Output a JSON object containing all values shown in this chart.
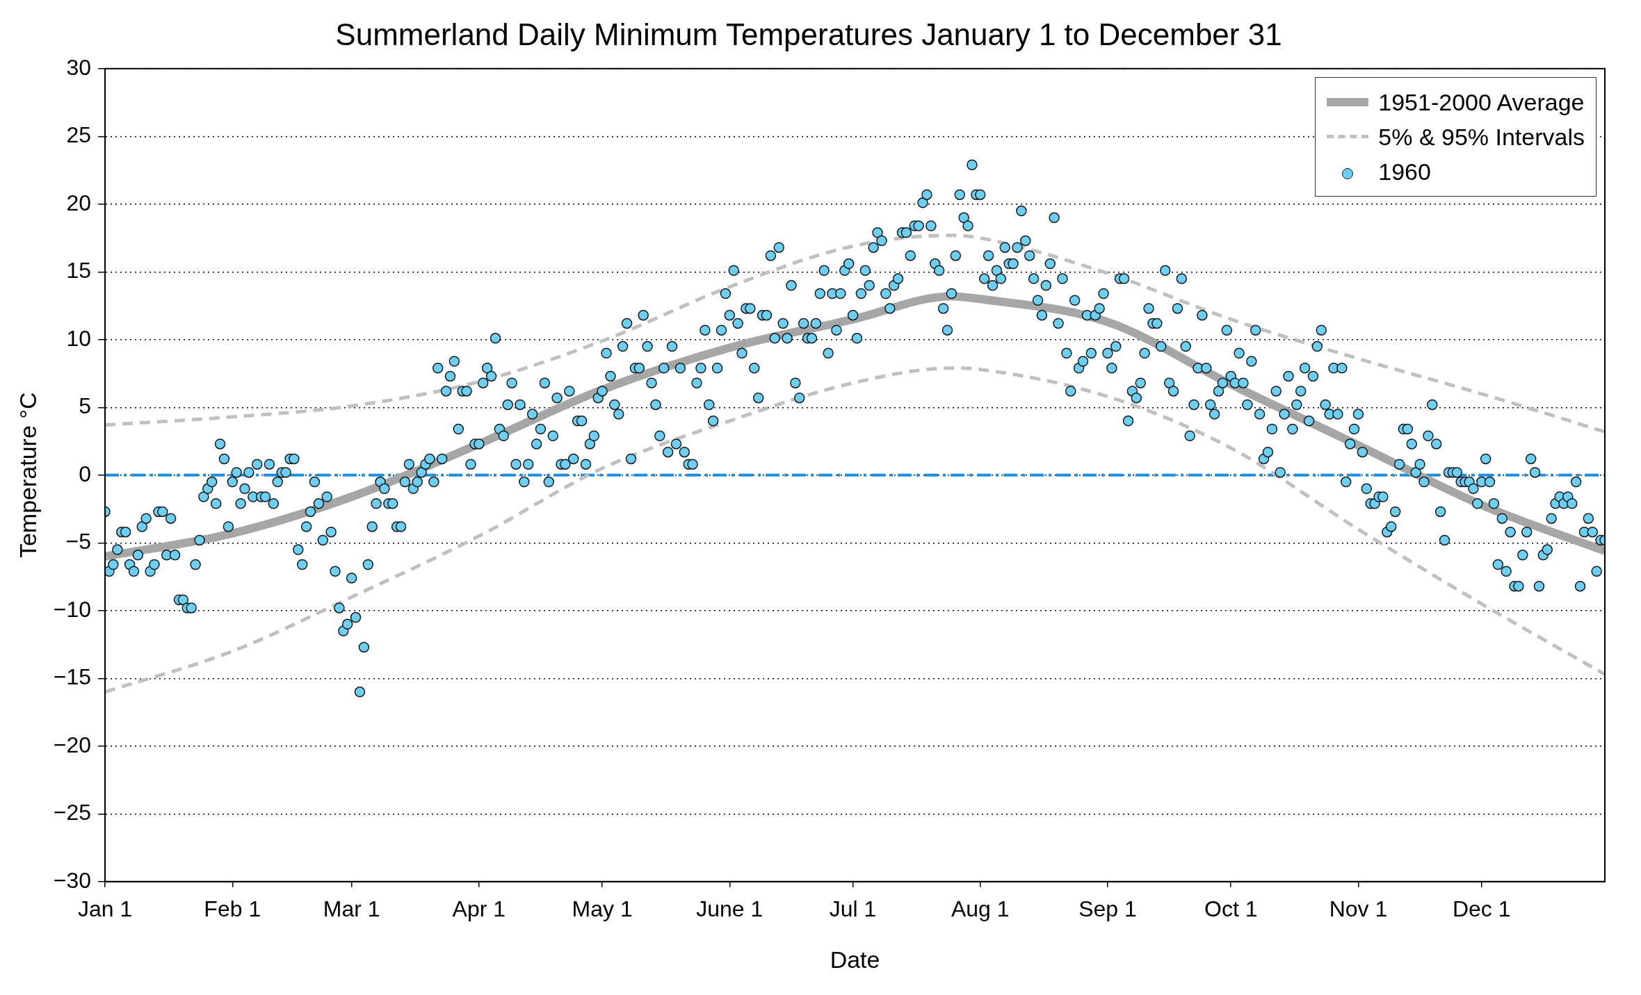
{
  "chart_data": {
    "type": "scatter",
    "title": "Summerland Daily Minimum Temperatures January 1 to December 31",
    "xlabel": "Date",
    "ylabel": "Temperature °C",
    "xlim": [
      "--01-01",
      "--12-31"
    ],
    "xticks": [
      {
        "value": "--01-01",
        "label": "Jan 1"
      },
      {
        "value": "--02-01",
        "label": "Feb 1"
      },
      {
        "value": "--03-01",
        "label": "Mar 1"
      },
      {
        "value": "--04-01",
        "label": "Apr 1"
      },
      {
        "value": "--05-01",
        "label": "May 1"
      },
      {
        "value": "--06-01",
        "label": "June 1"
      },
      {
        "value": "--07-01",
        "label": "Jul 1"
      },
      {
        "value": "--08-01",
        "label": "Aug 1"
      },
      {
        "value": "--09-01",
        "label": "Sep 1"
      },
      {
        "value": "--10-01",
        "label": "Oct 1"
      },
      {
        "value": "--11-01",
        "label": "Nov 1"
      },
      {
        "value": "--12-01",
        "label": "Dec 1"
      }
    ],
    "ylim": [
      -30,
      30
    ],
    "yticks": [
      {
        "value": -30,
        "label": "−30"
      },
      {
        "value": -25,
        "label": "−25"
      },
      {
        "value": -20,
        "label": "−20"
      },
      {
        "value": -15,
        "label": "−15"
      },
      {
        "value": -10,
        "label": "−10"
      },
      {
        "value": -5,
        "label": "−5"
      },
      0,
      5,
      10,
      15,
      20,
      25,
      30
    ],
    "grid": "y",
    "legend": "top right",
    "marker": "none",
    "ref_lines": [
      {
        "axis": "y",
        "value": 0,
        "color": "#1a8fe3",
        "line_style": "dashed"
      }
    ],
    "series": [
      {
        "name": "1951-2000 Average",
        "type": "line",
        "color": "#a6a6a6",
        "line_style": "solid",
        "x": [
          "--01-01",
          "--02-01",
          "--03-01",
          "--04-01",
          "--05-01",
          "--06-01",
          "--07-01",
          "--07-25",
          "--08-01",
          "--09-01",
          "--10-01",
          "--11-01",
          "--12-01",
          "--12-31"
        ],
        "values": [
          -6.0,
          -4.3,
          -1.6,
          2.3,
          6.3,
          9.4,
          11.5,
          13.2,
          13.0,
          11.3,
          6.7,
          2.2,
          -2.2,
          -5.6
        ]
      },
      {
        "name": "5% & 95% Intervals",
        "type": "line",
        "color": "#c0c0c0",
        "line_style": "dashed",
        "x": [
          "--01-01",
          "--02-01",
          "--03-01",
          "--04-01",
          "--05-01",
          "--06-01",
          "--07-01",
          "--07-25",
          "--08-01",
          "--09-01",
          "--10-01",
          "--11-01",
          "--12-01",
          "--12-31"
        ],
        "values": [
          3.7,
          4.3,
          5.1,
          6.9,
          9.9,
          13.9,
          16.9,
          17.7,
          17.5,
          14.9,
          11.5,
          8.6,
          6.0,
          3.2
        ]
      },
      {
        "type": "line",
        "color": "#c0c0c0",
        "line_style": "dashed",
        "x": [
          "--01-01",
          "--02-01",
          "--03-01",
          "--04-01",
          "--05-01",
          "--06-01",
          "--07-01",
          "--07-25",
          "--08-01",
          "--09-01",
          "--10-01",
          "--11-01",
          "--12-01",
          "--12-31"
        ],
        "values": [
          -16.0,
          -13.0,
          -9.0,
          -4.5,
          0.5,
          4.0,
          6.8,
          7.9,
          7.8,
          5.8,
          2.0,
          -4.0,
          -9.5,
          -14.7
        ]
      },
      {
        "name": "1960",
        "type": "scatter",
        "color": "#6ccff6",
        "marker": "circle",
        "x": [
          "--01-01",
          "--01-02",
          "--01-03",
          "--01-04",
          "--01-05",
          "--01-06",
          "--01-07",
          "--01-08",
          "--01-09",
          "--01-10",
          "--01-11",
          "--01-12",
          "--01-13",
          "--01-14",
          "--01-15",
          "--01-16",
          "--01-17",
          "--01-18",
          "--01-19",
          "--01-20",
          "--01-21",
          "--01-22",
          "--01-23",
          "--01-24",
          "--01-25",
          "--01-26",
          "--01-27",
          "--01-28",
          "--01-29",
          "--01-30",
          "--01-31",
          "--02-01",
          "--02-02",
          "--02-03",
          "--02-04",
          "--02-05",
          "--02-06",
          "--02-07",
          "--02-08",
          "--02-09",
          "--02-10",
          "--02-11",
          "--02-12",
          "--02-13",
          "--02-14",
          "--02-15",
          "--02-16",
          "--02-17",
          "--02-18",
          "--02-19",
          "--02-20",
          "--02-21",
          "--02-22",
          "--02-23",
          "--02-24",
          "--02-25",
          "--02-26",
          "--02-27",
          "--02-28",
          "--02-29",
          "--03-01",
          "--03-02",
          "--03-03",
          "--03-04",
          "--03-05",
          "--03-06",
          "--03-07",
          "--03-08",
          "--03-09",
          "--03-10",
          "--03-11",
          "--03-12",
          "--03-13",
          "--03-14",
          "--03-15",
          "--03-16",
          "--03-17",
          "--03-18",
          "--03-19",
          "--03-20",
          "--03-21",
          "--03-22",
          "--03-23",
          "--03-24",
          "--03-25",
          "--03-26",
          "--03-27",
          "--03-28",
          "--03-29",
          "--03-30",
          "--03-31",
          "--04-01",
          "--04-02",
          "--04-03",
          "--04-04",
          "--04-05",
          "--04-06",
          "--04-07",
          "--04-08",
          "--04-09",
          "--04-10",
          "--04-11",
          "--04-12",
          "--04-13",
          "--04-14",
          "--04-15",
          "--04-16",
          "--04-17",
          "--04-18",
          "--04-19",
          "--04-20",
          "--04-21",
          "--04-22",
          "--04-23",
          "--04-24",
          "--04-25",
          "--04-26",
          "--04-27",
          "--04-28",
          "--04-29",
          "--04-30",
          "--05-01",
          "--05-02",
          "--05-03",
          "--05-04",
          "--05-05",
          "--05-06",
          "--05-07",
          "--05-08",
          "--05-09",
          "--05-10",
          "--05-11",
          "--05-12",
          "--05-13",
          "--05-14",
          "--05-15",
          "--05-16",
          "--05-17",
          "--05-18",
          "--05-19",
          "--05-20",
          "--05-21",
          "--05-22",
          "--05-23",
          "--05-24",
          "--05-25",
          "--05-26",
          "--05-27",
          "--05-28",
          "--05-29",
          "--05-30",
          "--05-31",
          "--06-01",
          "--06-02",
          "--06-03",
          "--06-04",
          "--06-05",
          "--06-06",
          "--06-07",
          "--06-08",
          "--06-09",
          "--06-10",
          "--06-11",
          "--06-12",
          "--06-13",
          "--06-14",
          "--06-15",
          "--06-16",
          "--06-17",
          "--06-18",
          "--06-19",
          "--06-20",
          "--06-21",
          "--06-22",
          "--06-23",
          "--06-24",
          "--06-25",
          "--06-26",
          "--06-27",
          "--06-28",
          "--06-29",
          "--06-30",
          "--07-01",
          "--07-02",
          "--07-03",
          "--07-04",
          "--07-05",
          "--07-06",
          "--07-07",
          "--07-08",
          "--07-09",
          "--07-10",
          "--07-11",
          "--07-12",
          "--07-13",
          "--07-14",
          "--07-15",
          "--07-16",
          "--07-17",
          "--07-18",
          "--07-19",
          "--07-20",
          "--07-21",
          "--07-22",
          "--07-23",
          "--07-24",
          "--07-25",
          "--07-26",
          "--07-27",
          "--07-28",
          "--07-29",
          "--07-30",
          "--07-31",
          "--08-01",
          "--08-02",
          "--08-03",
          "--08-04",
          "--08-05",
          "--08-06",
          "--08-07",
          "--08-08",
          "--08-09",
          "--08-10",
          "--08-11",
          "--08-12",
          "--08-13",
          "--08-14",
          "--08-15",
          "--08-16",
          "--08-17",
          "--08-18",
          "--08-19",
          "--08-20",
          "--08-21",
          "--08-22",
          "--08-23",
          "--08-24",
          "--08-25",
          "--08-26",
          "--08-27",
          "--08-28",
          "--08-29",
          "--08-30",
          "--08-31",
          "--09-01",
          "--09-02",
          "--09-03",
          "--09-04",
          "--09-05",
          "--09-06",
          "--09-07",
          "--09-08",
          "--09-09",
          "--09-10",
          "--09-11",
          "--09-12",
          "--09-13",
          "--09-14",
          "--09-15",
          "--09-16",
          "--09-17",
          "--09-18",
          "--09-19",
          "--09-20",
          "--09-21",
          "--09-22",
          "--09-23",
          "--09-24",
          "--09-25",
          "--09-26",
          "--09-27",
          "--09-28",
          "--09-29",
          "--09-30",
          "--10-01",
          "--10-02",
          "--10-03",
          "--10-04",
          "--10-05",
          "--10-06",
          "--10-07",
          "--10-08",
          "--10-09",
          "--10-10",
          "--10-11",
          "--10-12",
          "--10-13",
          "--10-14",
          "--10-15",
          "--10-16",
          "--10-17",
          "--10-18",
          "--10-19",
          "--10-20",
          "--10-21",
          "--10-22",
          "--10-23",
          "--10-24",
          "--10-25",
          "--10-26",
          "--10-27",
          "--10-28",
          "--10-29",
          "--10-30",
          "--10-31",
          "--11-01",
          "--11-02",
          "--11-03",
          "--11-04",
          "--11-05",
          "--11-06",
          "--11-07",
          "--11-08",
          "--11-09",
          "--11-10",
          "--11-11",
          "--11-12",
          "--11-13",
          "--11-14",
          "--11-15",
          "--11-16",
          "--11-17",
          "--11-18",
          "--11-19",
          "--11-20",
          "--11-21",
          "--11-22",
          "--11-23",
          "--11-24",
          "--11-25",
          "--11-26",
          "--11-27",
          "--11-28",
          "--11-29",
          "--11-30",
          "--12-01",
          "--12-02",
          "--12-03",
          "--12-04",
          "--12-05",
          "--12-06",
          "--12-07",
          "--12-08",
          "--12-09",
          "--12-10",
          "--12-11",
          "--12-12",
          "--12-13",
          "--12-14",
          "--12-15",
          "--12-16",
          "--12-17",
          "--12-18",
          "--12-19",
          "--12-20",
          "--12-21",
          "--12-22",
          "--12-23",
          "--12-24",
          "--12-25",
          "--12-26",
          "--12-27",
          "--12-28",
          "--12-29",
          "--12-30",
          "--12-31"
        ],
        "values": [
          -2.7,
          -7.1,
          -6.6,
          -5.5,
          -4.2,
          -4.2,
          -6.6,
          -7.1,
          -5.9,
          -3.8,
          -3.2,
          -7.1,
          -6.6,
          -2.7,
          -2.7,
          -5.9,
          -3.2,
          -5.9,
          -9.2,
          -9.2,
          -9.8,
          -9.8,
          -6.6,
          -4.8,
          -1.6,
          -1.0,
          -0.5,
          -2.1,
          2.3,
          1.2,
          -3.8,
          -0.5,
          0.2,
          -2.1,
          -1.0,
          0.2,
          -1.6,
          0.8,
          -1.6,
          -1.6,
          0.8,
          -2.1,
          -0.5,
          0.2,
          0.2,
          1.2,
          1.2,
          -5.5,
          -6.6,
          -3.8,
          -2.7,
          -0.5,
          -2.1,
          -4.8,
          -1.6,
          -4.2,
          -7.1,
          -9.8,
          -11.5,
          -11.0,
          -7.6,
          -10.5,
          -16.0,
          -12.7,
          -6.6,
          -3.8,
          -2.1,
          -0.5,
          -1.0,
          -2.1,
          -2.1,
          -3.8,
          -3.8,
          -0.5,
          0.8,
          -1.0,
          -0.5,
          0.2,
          0.8,
          1.2,
          -0.5,
          7.9,
          1.2,
          6.2,
          7.3,
          8.4,
          3.4,
          6.2,
          6.2,
          0.8,
          2.3,
          2.3,
          6.8,
          7.9,
          7.3,
          10.1,
          3.4,
          2.9,
          5.2,
          6.8,
          0.8,
          5.2,
          -0.5,
          0.8,
          4.5,
          2.3,
          3.4,
          6.8,
          -0.5,
          2.9,
          5.7,
          0.8,
          0.8,
          6.2,
          1.2,
          4.0,
          4.0,
          0.8,
          2.3,
          2.9,
          5.7,
          6.2,
          9.0,
          7.3,
          5.2,
          4.5,
          9.5,
          11.2,
          1.2,
          7.9,
          7.9,
          11.8,
          9.5,
          6.8,
          5.2,
          2.9,
          7.9,
          1.7,
          9.5,
          2.3,
          7.9,
          1.7,
          0.8,
          0.8,
          6.8,
          7.9,
          10.7,
          5.2,
          4.0,
          7.9,
          10.7,
          13.4,
          11.8,
          15.1,
          11.2,
          9.0,
          12.3,
          12.3,
          7.9,
          5.7,
          11.8,
          11.8,
          16.2,
          10.1,
          16.8,
          11.2,
          10.1,
          14.0,
          6.8,
          5.7,
          11.2,
          10.1,
          10.1,
          11.2,
          13.4,
          15.1,
          9.0,
          13.4,
          10.7,
          13.4,
          15.1,
          15.6,
          11.8,
          10.1,
          13.4,
          15.1,
          14.0,
          16.8,
          17.9,
          17.3,
          13.4,
          12.3,
          14.0,
          14.5,
          17.9,
          17.9,
          16.2,
          18.4,
          18.4,
          20.1,
          20.7,
          18.4,
          15.6,
          15.1,
          12.3,
          10.7,
          13.4,
          16.2,
          20.7,
          19.0,
          18.4,
          22.9,
          20.7,
          20.7,
          14.5,
          16.2,
          14.0,
          15.1,
          14.5,
          16.8,
          15.6,
          15.6,
          16.8,
          19.5,
          17.3,
          16.2,
          14.5,
          12.9,
          11.8,
          14.0,
          15.6,
          19.0,
          11.2,
          14.5,
          9.0,
          6.2,
          12.9,
          7.9,
          8.4,
          11.8,
          9.0,
          11.8,
          12.3,
          13.4,
          9.0,
          7.9,
          9.5,
          14.5,
          14.5,
          4.0,
          6.2,
          5.7,
          6.8,
          9.0,
          12.3,
          11.2,
          11.2,
          9.5,
          15.1,
          6.8,
          6.2,
          12.3,
          14.5,
          9.5,
          2.9,
          5.2,
          7.9,
          11.8,
          7.9,
          5.2,
          4.5,
          6.2,
          6.8,
          10.7,
          7.3,
          6.8,
          9.0,
          6.8,
          5.2,
          8.4,
          10.7,
          4.5,
          1.2,
          1.7,
          3.4,
          6.2,
          0.2,
          4.5,
          7.3,
          3.4,
          5.2,
          6.2,
          7.9,
          4.0,
          7.3,
          9.5,
          10.7,
          5.2,
          4.5,
          7.9,
          4.5,
          7.9,
          -0.5,
          2.3,
          3.4,
          4.5,
          1.7,
          -1.0,
          -2.1,
          -2.1,
          -1.6,
          -1.6,
          -4.2,
          -3.8,
          -2.7,
          0.8,
          3.4,
          3.4,
          2.3,
          0.2,
          0.8,
          -0.5,
          2.9,
          5.2,
          2.3,
          -2.7,
          -4.8,
          0.2,
          0.2,
          0.2,
          -0.5,
          -0.5,
          -0.5,
          -1.0,
          -2.1,
          -0.5,
          1.2,
          -0.5,
          -2.1,
          -6.6,
          -3.2,
          -7.1,
          -4.2,
          -8.2,
          -8.2,
          -5.9,
          -4.2,
          1.2,
          0.2,
          -8.2,
          -5.9,
          -5.5,
          -3.2,
          -2.1,
          -1.6,
          -2.1,
          -1.6,
          -2.1,
          -0.5,
          -8.2,
          -4.2,
          -3.2,
          -4.2,
          -7.1,
          -4.8,
          -4.8
        ]
      }
    ]
  }
}
